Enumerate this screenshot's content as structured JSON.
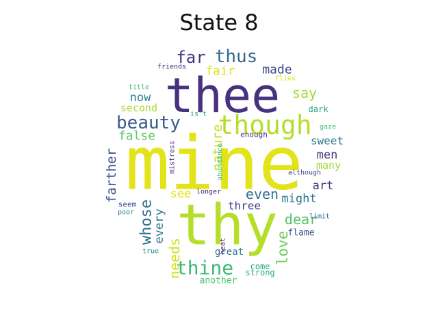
{
  "title": "State 8",
  "words": [
    {
      "text": "mine",
      "color": "#e3e31a"
    },
    {
      "text": "thee",
      "color": "#46327e"
    },
    {
      "text": "thy",
      "color": "#b5de2b"
    },
    {
      "text": "though",
      "color": "#b5de2b"
    },
    {
      "text": "beauty",
      "color": "#365c8d"
    },
    {
      "text": "thine",
      "color": "#3aba76"
    },
    {
      "text": "thus",
      "color": "#31688e"
    },
    {
      "text": "far",
      "color": "#443983"
    },
    {
      "text": "fair",
      "color": "#dde318"
    },
    {
      "text": "made",
      "color": "#3f4788"
    },
    {
      "text": "say",
      "color": "#a2da37"
    },
    {
      "text": "now",
      "color": "#277f8e"
    },
    {
      "text": "second",
      "color": "#a8db34"
    },
    {
      "text": "false",
      "color": "#5ec962"
    },
    {
      "text": "nature",
      "color": "#bddf26"
    },
    {
      "text": "sweet",
      "color": "#2a788e"
    },
    {
      "text": "men",
      "color": "#46337e"
    },
    {
      "text": "many",
      "color": "#a0da39"
    },
    {
      "text": "even",
      "color": "#2c718e"
    },
    {
      "text": "art",
      "color": "#472d7b"
    },
    {
      "text": "might",
      "color": "#2a788e"
    },
    {
      "text": "farther",
      "color": "#3b528b"
    },
    {
      "text": "see",
      "color": "#e7e419"
    },
    {
      "text": "three",
      "color": "#423f85"
    },
    {
      "text": "dear",
      "color": "#52c569"
    },
    {
      "text": "whose",
      "color": "#2e6e8e"
    },
    {
      "text": "every",
      "color": "#2c728e"
    },
    {
      "text": "love",
      "color": "#6ccd5a"
    },
    {
      "text": "needs",
      "color": "#d0e11c"
    },
    {
      "text": "flame",
      "color": "#3d4e8a"
    },
    {
      "text": "great",
      "color": "#2d708e"
    },
    {
      "text": "come",
      "color": "#22a785"
    },
    {
      "text": "strong",
      "color": "#26ad81"
    },
    {
      "text": "another",
      "color": "#4ac16d"
    },
    {
      "text": "friends",
      "color": "#46307e"
    },
    {
      "text": "flies",
      "color": "#dae319"
    },
    {
      "text": "title",
      "color": "#40bd72"
    },
    {
      "text": "dark",
      "color": "#1f9e89"
    },
    {
      "text": "gaze",
      "color": "#3dbc74"
    },
    {
      "text": "is't",
      "color": "#1fa187"
    },
    {
      "text": "enough",
      "color": "#46307e"
    },
    {
      "text": "mistress",
      "color": "#482878"
    },
    {
      "text": "abundance",
      "color": "#3dbc74"
    },
    {
      "text": "although",
      "color": "#404588"
    },
    {
      "text": "longer",
      "color": "#481b6d"
    },
    {
      "text": "seem",
      "color": "#404688"
    },
    {
      "text": "poor",
      "color": "#26828e"
    },
    {
      "text": "limit",
      "color": "#355f8d"
    },
    {
      "text": "heat",
      "color": "#471365"
    },
    {
      "text": "true",
      "color": "#26828e"
    }
  ]
}
